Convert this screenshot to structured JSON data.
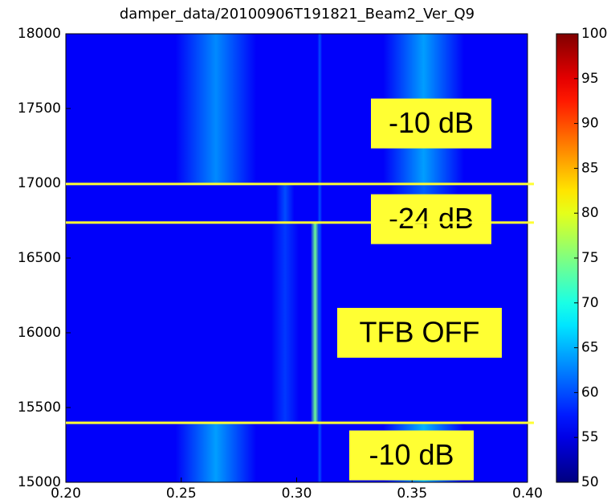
{
  "chart_data": {
    "type": "heatmap",
    "title": "damper_data/20100906T191821_Beam2_Ver_Q9",
    "xlim": [
      0.2,
      0.4
    ],
    "xticks": [
      {
        "value": 0.2,
        "label": "0.20"
      },
      0.25,
      {
        "value": 0.3,
        "label": "0.30"
      },
      0.35,
      {
        "value": 0.4,
        "label": "0.40"
      }
    ],
    "ylim": [
      15000,
      18000
    ],
    "yticks": [
      15000,
      15500,
      16000,
      16500,
      17000,
      17500,
      18000
    ],
    "clim": [
      50,
      100
    ],
    "cticks": [
      50,
      55,
      60,
      65,
      70,
      75,
      80,
      85,
      90,
      95,
      100
    ],
    "colormap": "jet",
    "background": 56,
    "features": [
      {
        "x": 0.265,
        "width": 0.035,
        "y": [
          16995,
          18000
        ],
        "level": 63
      },
      {
        "x": 0.355,
        "width": 0.035,
        "y": [
          16995,
          18000
        ],
        "level": 64
      },
      {
        "x": 0.295,
        "width": 0.008,
        "y": [
          16737,
          16995
        ],
        "level": 60
      },
      {
        "x": 0.355,
        "width": 0.03,
        "y": [
          16737,
          16995
        ],
        "level": 61
      },
      {
        "x": 0.295,
        "width": 0.012,
        "y": [
          15398,
          16737
        ],
        "level": 59
      },
      {
        "x": 0.308,
        "width": 0.004,
        "y": [
          15398,
          16737
        ],
        "level": 74
      },
      {
        "x": 0.265,
        "width": 0.035,
        "y": [
          15000,
          15398
        ],
        "level": 64
      },
      {
        "x": 0.355,
        "width": 0.035,
        "y": [
          15000,
          15398
        ],
        "level": 65
      },
      {
        "x": 0.31,
        "width": 0.002,
        "y": [
          15000,
          18000
        ],
        "level": 60
      }
    ],
    "hlines": [
      16995,
      16737,
      15398
    ],
    "hline_color": "#ffff33",
    "annotations": [
      {
        "text": "-10 dB",
        "y": 17400
      },
      {
        "text": "-24 dB",
        "y": 16760
      },
      {
        "text": "TFB OFF",
        "y": 16000
      },
      {
        "text": "-10 dB",
        "y": 15180
      }
    ]
  }
}
